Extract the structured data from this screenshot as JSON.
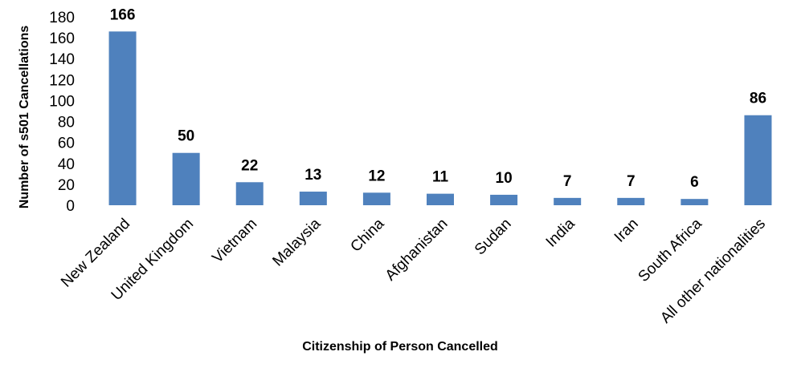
{
  "chart_data": {
    "type": "bar",
    "title": "",
    "xlabel": "Citizenship of Person Cancelled",
    "ylabel": "Number of s501 Cancellations",
    "categories": [
      "New Zealand",
      "United Kingdom",
      "Vietnam",
      "Malaysia",
      "China",
      "Afghanistan",
      "Sudan",
      "India",
      "Iran",
      "South Africa",
      "All other nationalities"
    ],
    "values": [
      166,
      50,
      22,
      13,
      12,
      11,
      10,
      7,
      7,
      6,
      86
    ],
    "ylim": [
      0,
      180
    ],
    "yticks": [
      0,
      20,
      40,
      60,
      80,
      100,
      120,
      140,
      160,
      180
    ],
    "grid": false,
    "data_labels": true,
    "bar_color": "#4F81BD"
  }
}
